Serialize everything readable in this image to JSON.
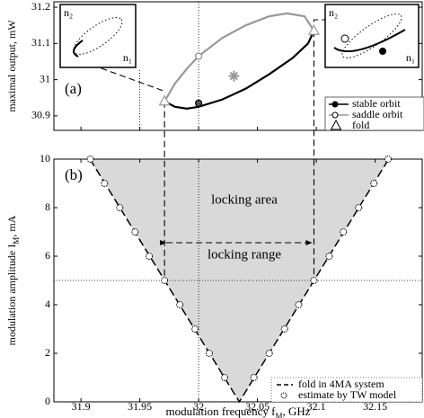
{
  "chart_data": [
    {
      "type": "line",
      "label": "(a)",
      "y_label": "maximal output, mW",
      "xlim": [
        31.877,
        32.19
      ],
      "ylim": [
        30.86,
        31.215
      ],
      "yticks": [
        30.9,
        31,
        31.1,
        31.2
      ],
      "series": [
        {
          "name": "stable orbit",
          "color": "#000000",
          "x": [
            31.971,
            31.98,
            31.99,
            32.0,
            32.02,
            32.04,
            32.06,
            32.08,
            32.093,
            32.098
          ],
          "values": [
            30.94,
            30.925,
            30.92,
            30.925,
            30.945,
            30.975,
            31.015,
            31.06,
            31.1,
            31.135
          ]
        },
        {
          "name": "saddle orbit",
          "color": "#999999",
          "x": [
            31.971,
            31.98,
            31.99,
            32.0,
            32.02,
            32.04,
            32.06,
            32.075,
            32.09,
            32.098
          ],
          "values": [
            30.94,
            30.99,
            31.03,
            31.065,
            31.115,
            31.15,
            31.175,
            31.183,
            31.175,
            31.135
          ]
        }
      ],
      "orbit_points": {
        "x": [
          32.0,
          32.0
        ],
        "values": [
          30.935,
          31.065
        ]
      },
      "folds": {
        "name": "fold",
        "x": [
          31.971,
          32.098
        ],
        "values": [
          30.94,
          31.135
        ]
      },
      "star": {
        "x": 32.03,
        "value": 31.01
      },
      "inset_labels": [
        "n₂",
        "n₁",
        "n₂",
        "n₁"
      ]
    },
    {
      "type": "area",
      "label": "(b)",
      "y_label": {
        "text": "modulation amplitude I",
        "sub": "M",
        "unit": ", mA"
      },
      "x_label": {
        "text": "modulation frequency  f",
        "sub": "M",
        "unit": ",       GHz"
      },
      "xlim": [
        31.877,
        32.19
      ],
      "ylim": [
        0,
        10
      ],
      "xticks": [
        31.9,
        31.95,
        32,
        32.05,
        32.1,
        32.15
      ],
      "yticks": [
        0,
        2,
        4,
        6,
        8,
        10
      ],
      "series": [
        {
          "name": "fold in 4MA system",
          "color": "#000000",
          "x": [
            31.9077,
            32.0346,
            32.1615
          ],
          "values": [
            10,
            0,
            10
          ]
        },
        {
          "name": "estimate by TW model",
          "color": "#000000",
          "x": [
            32.022,
            32.009,
            31.997,
            31.984,
            31.971,
            31.958,
            31.946,
            31.933,
            31.92,
            31.908,
            32.047,
            32.06,
            32.073,
            32.085,
            32.098,
            32.111,
            32.123,
            32.136,
            32.149,
            32.161
          ],
          "values": [
            1,
            2,
            3,
            4,
            5,
            6,
            7,
            8,
            9,
            10,
            1,
            2,
            3,
            4,
            5,
            6,
            7,
            8,
            9,
            10
          ]
        }
      ],
      "annotations": [
        "locking   area",
        "locking range"
      ]
    }
  ]
}
